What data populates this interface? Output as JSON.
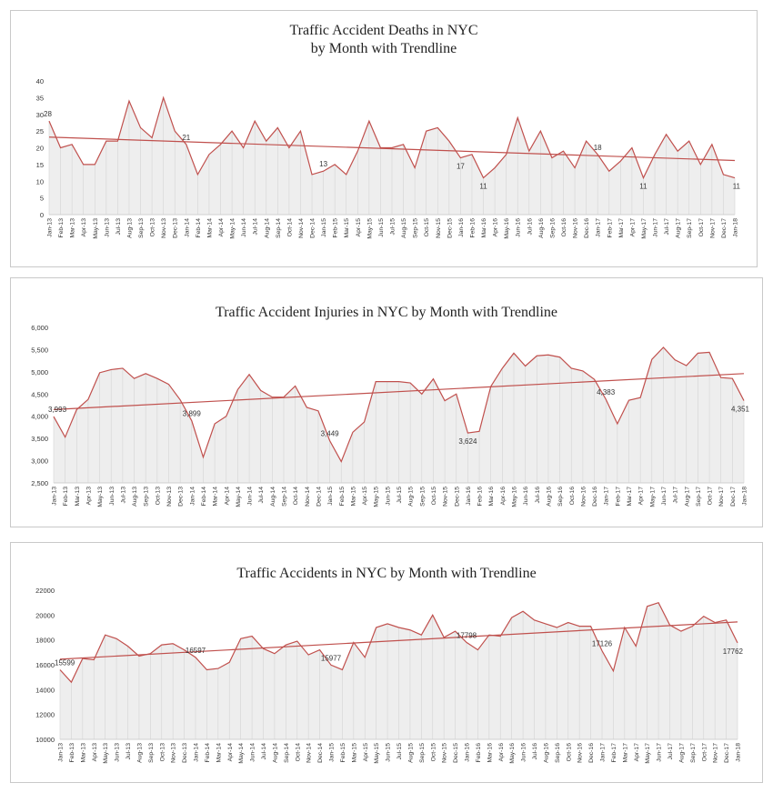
{
  "chart_data": [
    {
      "type": "area",
      "title": "Traffic Accident Deaths in NYC",
      "subtitle": "by Month with  Trendline",
      "categories": [
        "Jan-13",
        "Feb-13",
        "Mar-13",
        "Apr-13",
        "May-13",
        "Jun-13",
        "Jul-13",
        "Aug-13",
        "Sep-13",
        "Oct-13",
        "Nov-13",
        "Dec-13",
        "Jan-14",
        "Feb-14",
        "Mar-14",
        "Apr-14",
        "May-14",
        "Jun-14",
        "Jul-14",
        "Aug-14",
        "Sep-14",
        "Oct-14",
        "Nov-14",
        "Dec-14",
        "Jan-15",
        "Feb-15",
        "Mar-15",
        "Apr-15",
        "May-15",
        "Jun-15",
        "Jul-15",
        "Aug-15",
        "Sep-15",
        "Oct-15",
        "Nov-15",
        "Dec-15",
        "Jan-16",
        "Feb-16",
        "Mar-16",
        "Apr-16",
        "May-16",
        "Jun-16",
        "Jul-16",
        "Aug-16",
        "Sep-16",
        "Oct-16",
        "Nov-16",
        "Dec-16",
        "Jan-17",
        "Feb-17",
        "Mar-17",
        "Apr-17",
        "May-17",
        "Jun-17",
        "Jul-17",
        "Aug-17",
        "Sep-17",
        "Oct-17",
        "Nov-17",
        "Dec-17",
        "Jan-18"
      ],
      "values": [
        28,
        20,
        21,
        15,
        15,
        22,
        22,
        34,
        26,
        23,
        35,
        25,
        21,
        12,
        18,
        21,
        25,
        20,
        28,
        22,
        26,
        20,
        25,
        12,
        13,
        15,
        12,
        19,
        28,
        20,
        20,
        21,
        14,
        25,
        26,
        22,
        17,
        18,
        11,
        14,
        18,
        29,
        19,
        25,
        17,
        19,
        14,
        22,
        18,
        13,
        16,
        20,
        11,
        18,
        24,
        19,
        22,
        15,
        21,
        12,
        11
      ],
      "labels": [
        {
          "i": 0,
          "text": "28"
        },
        {
          "i": 12,
          "text": "21"
        },
        {
          "i": 24,
          "text": "13"
        },
        {
          "i": 36,
          "text": "17"
        },
        {
          "i": 38,
          "text": "11"
        },
        {
          "i": 48,
          "text": "18"
        },
        {
          "i": 52,
          "text": "11"
        },
        {
          "i": 60,
          "text": "11"
        }
      ],
      "yticks": [
        "0",
        "5",
        "10",
        "15",
        "20",
        "25",
        "30",
        "35",
        "40"
      ],
      "ylim": [
        0,
        40
      ],
      "trend": [
        23.2,
        16.2
      ],
      "grid": false,
      "line_color": "#c0504d"
    },
    {
      "type": "area",
      "title": "Traffic Accident Injuries in NYC  by Month with  Trendline",
      "subtitle": "",
      "categories": [
        "Jan-13",
        "Feb-13",
        "Mar-13",
        "Apr-13",
        "May-13",
        "Jun-13",
        "Jul-13",
        "Aug-13",
        "Sep-13",
        "Oct-13",
        "Nov-13",
        "Dec-13",
        "Jan-14",
        "Feb-14",
        "Mar-14",
        "Apr-14",
        "May-14",
        "Jun-14",
        "Jul-14",
        "Aug-14",
        "Sep-14",
        "Oct-14",
        "Nov-14",
        "Dec-14",
        "Jan-15",
        "Feb-15",
        "Mar-15",
        "Apr-15",
        "May-15",
        "Jun-15",
        "Jul-15",
        "Aug-15",
        "Sep-15",
        "Oct-15",
        "Nov-15",
        "Dec-15",
        "Jan-16",
        "Feb-16",
        "Mar-16",
        "Apr-16",
        "May-16",
        "Jun-16",
        "Jul-16",
        "Aug-16",
        "Sep-16",
        "Oct-16",
        "Nov-16",
        "Dec-16",
        "Jan-17",
        "Feb-17",
        "Mar-17",
        "Apr-17",
        "May-17",
        "Jun-17",
        "Jul-17",
        "Aug-17",
        "Sep-17",
        "Oct-17",
        "Nov-17",
        "Dec-17",
        "Jan-18"
      ],
      "values": [
        3993,
        3530,
        4150,
        4380,
        4980,
        5050,
        5080,
        4850,
        4960,
        4850,
        4720,
        4370,
        3899,
        3080,
        3830,
        4000,
        4600,
        4940,
        4580,
        4430,
        4430,
        4680,
        4200,
        4120,
        3449,
        2980,
        3640,
        3870,
        4780,
        4780,
        4780,
        4750,
        4500,
        4840,
        4350,
        4500,
        3624,
        3660,
        4670,
        5080,
        5420,
        5130,
        5360,
        5380,
        5330,
        5080,
        5020,
        4830,
        4383,
        3830,
        4360,
        4420,
        5280,
        5550,
        5270,
        5140,
        5420,
        5440,
        4870,
        4850,
        4351
      ],
      "labels": [
        {
          "i": 0,
          "text": "3,993"
        },
        {
          "i": 12,
          "text": "3,899"
        },
        {
          "i": 24,
          "text": "3,449"
        },
        {
          "i": 36,
          "text": "3,624"
        },
        {
          "i": 48,
          "text": "4,383"
        },
        {
          "i": 60,
          "text": "4,351"
        }
      ],
      "yticks": [
        "2,500",
        "3,000",
        "3,500",
        "4,000",
        "4,500",
        "5,000",
        "5,500",
        "6,000"
      ],
      "ylim": [
        2500,
        6000
      ],
      "trend": [
        4150,
        4960
      ],
      "grid": false,
      "line_color": "#c0504d"
    },
    {
      "type": "area",
      "title": "Traffic Accidents in NYC  by Month with  Trendline",
      "subtitle": "",
      "categories": [
        "Jan-13",
        "Feb-13",
        "Mar-13",
        "Apr-13",
        "May-13",
        "Jun-13",
        "Jul-13",
        "Aug-13",
        "Sep-13",
        "Oct-13",
        "Nov-13",
        "Dec-13",
        "Jan-14",
        "Feb-14",
        "Mar-14",
        "Apr-14",
        "May-14",
        "Jun-14",
        "Jul-14",
        "Aug-14",
        "Sep-14",
        "Oct-14",
        "Nov-14",
        "Dec-14",
        "Jan-15",
        "Feb-15",
        "Mar-15",
        "Apr-15",
        "May-15",
        "Jun-15",
        "Jul-15",
        "Aug-15",
        "Sep-15",
        "Oct-15",
        "Nov-15",
        "Dec-15",
        "Jan-16",
        "Feb-16",
        "Mar-16",
        "Apr-16",
        "May-16",
        "Jun-16",
        "Jul-16",
        "Aug-16",
        "Sep-16",
        "Oct-16",
        "Nov-16",
        "Dec-16",
        "Jan-17",
        "Feb-17",
        "Mar-17",
        "Apr-17",
        "May-17",
        "Jun-17",
        "Jul-17",
        "Aug-17",
        "Sep-17",
        "Oct-17",
        "Nov-17",
        "Dec-17",
        "Jan-18"
      ],
      "values": [
        15599,
        14600,
        16500,
        16400,
        18400,
        18100,
        17500,
        16700,
        16900,
        17600,
        17700,
        17200,
        16597,
        15600,
        15700,
        16200,
        18100,
        18300,
        17300,
        16900,
        17600,
        17900,
        16800,
        17200,
        15977,
        15600,
        17800,
        16600,
        19000,
        19300,
        19000,
        18800,
        18400,
        20000,
        18200,
        18700,
        17798,
        17200,
        18400,
        18300,
        19800,
        20300,
        19600,
        19300,
        19000,
        19400,
        19100,
        19100,
        17126,
        15500,
        19000,
        17500,
        20700,
        21000,
        19200,
        18700,
        19100,
        19900,
        19400,
        19600,
        17762
      ],
      "labels": [
        {
          "i": 0,
          "text": "15599"
        },
        {
          "i": 12,
          "text": "16597"
        },
        {
          "i": 24,
          "text": "15977"
        },
        {
          "i": 36,
          "text": "17798"
        },
        {
          "i": 48,
          "text": "17126"
        },
        {
          "i": 60,
          "text": "17762"
        }
      ],
      "yticks": [
        "10000",
        "12000",
        "14000",
        "16000",
        "18000",
        "20000",
        "22000"
      ],
      "ylim": [
        10000,
        22000
      ],
      "trend": [
        16450,
        19450
      ],
      "grid": false,
      "line_color": "#c0504d"
    }
  ]
}
